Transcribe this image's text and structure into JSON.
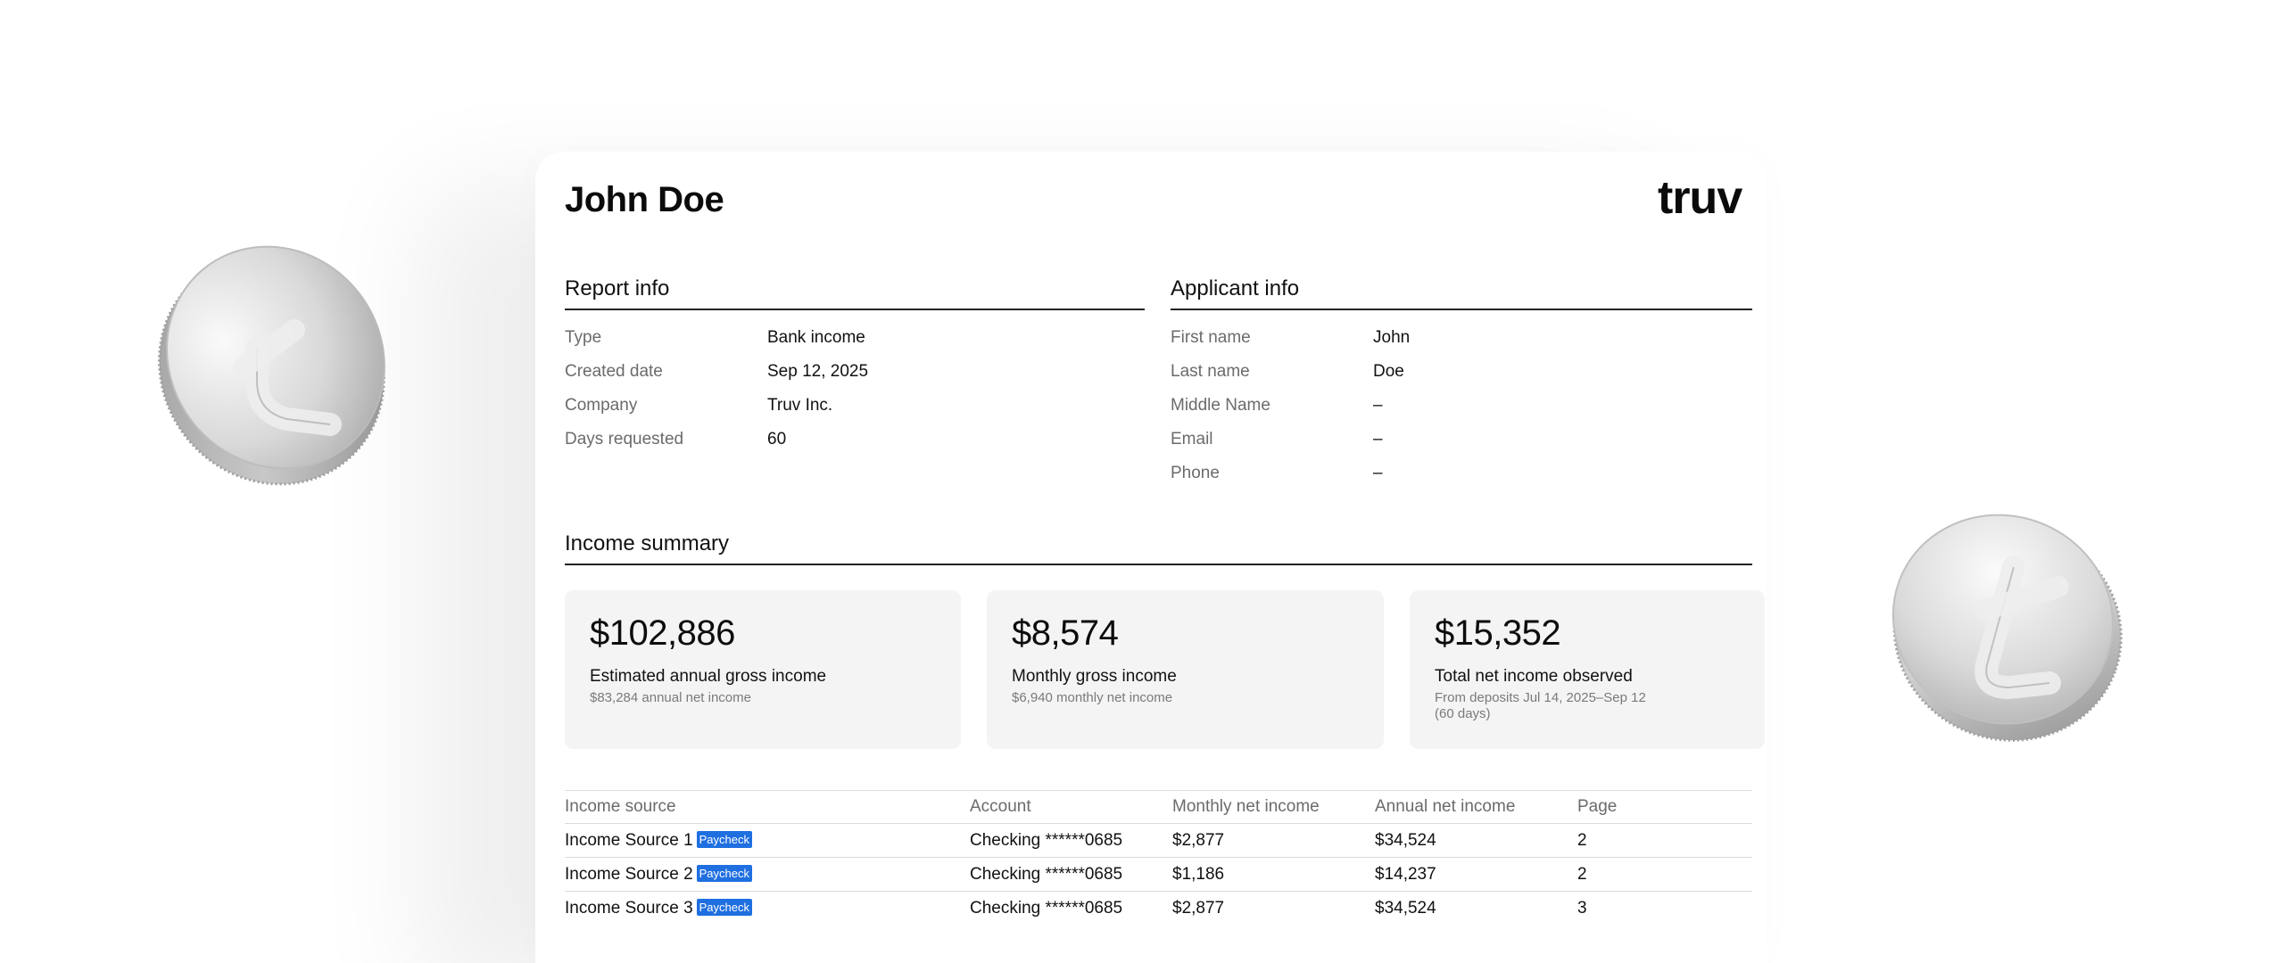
{
  "report": {
    "applicant_name": "John Doe",
    "brand": "truv"
  },
  "report_info": {
    "title": "Report info",
    "rows": [
      {
        "label": "Type",
        "value": "Bank income"
      },
      {
        "label": "Created date",
        "value": "Sep 12, 2025"
      },
      {
        "label": "Company",
        "value": "Truv Inc."
      },
      {
        "label": "Days requested",
        "value": "60"
      }
    ]
  },
  "applicant_info": {
    "title": "Applicant info",
    "rows": [
      {
        "label": "First name",
        "value": "John"
      },
      {
        "label": "Last name",
        "value": "Doe"
      },
      {
        "label": "Middle Name",
        "value": "–"
      },
      {
        "label": "Email",
        "value": "–"
      },
      {
        "label": "Phone",
        "value": "–"
      }
    ]
  },
  "income_summary": {
    "title": "Income summary",
    "metrics": [
      {
        "value": "$102,886",
        "label": "Estimated annual gross income",
        "sub": "$83,284 annual net income"
      },
      {
        "value": "$8,574",
        "label": "Monthly gross income",
        "sub": "$6,940 monthly net income"
      },
      {
        "value": "$15,352",
        "label": "Total net income observed",
        "sub": "From deposits Jul 14, 2025–Sep 12 (60 days)"
      }
    ]
  },
  "income_table": {
    "headers": {
      "source": "Income source",
      "account": "Account",
      "monthly": "Monthly net income",
      "annual": "Annual net income",
      "page": "Page"
    },
    "rows": [
      {
        "source": "Income Source 1",
        "badge": "Paycheck",
        "account": "Checking ******0685",
        "monthly": "$2,877",
        "annual": "$34,524",
        "page": "2"
      },
      {
        "source": "Income Source 2",
        "badge": "Paycheck",
        "account": "Checking ******0685",
        "monthly": "$1,186",
        "annual": "$14,237",
        "page": "2"
      },
      {
        "source": "Income Source 3",
        "badge": "Paycheck",
        "account": "Checking ******0685",
        "monthly": "$2,877",
        "annual": "$34,524",
        "page": "3"
      }
    ]
  },
  "decor": {
    "coin_icon": "truv-coin-icon"
  }
}
